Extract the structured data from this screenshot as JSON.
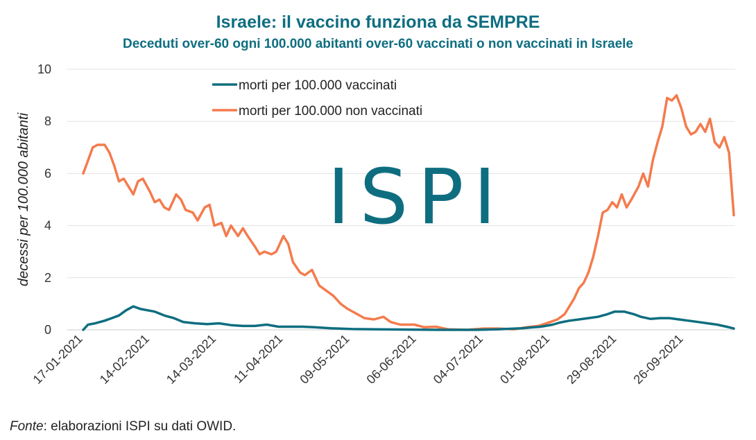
{
  "chart_data": {
    "type": "line",
    "title": "Israele: il vaccino funziona da SEMPRE",
    "subtitle": "Deceduti over-60 ogni 100.000 abitanti over-60 vaccinati o non vaccinati in Israele",
    "ylabel": "decessi per 100.000 abitanti",
    "xlabel": "",
    "ylim": [
      0,
      10
    ],
    "yticks": [
      "0",
      "2",
      "4",
      "6",
      "8",
      "10"
    ],
    "xticks": [
      "17-01-2021",
      "14-02-2021",
      "14-03-2021",
      "11-04-2021",
      "09-05-2021",
      "06-06-2021",
      "04-07-2021",
      "01-08-2021",
      "29-08-2021",
      "26-09-2021"
    ],
    "grid": "horizontal",
    "legend": "top-center",
    "x_start": "2021-01-17",
    "x_end": "2021-10-17",
    "series": [
      {
        "name": "morti per 100.000 vaccinati",
        "color": "#0e6e80",
        "points": [
          [
            "2021-01-17",
            0.0
          ],
          [
            "2021-01-19",
            0.2
          ],
          [
            "2021-01-22",
            0.25
          ],
          [
            "2021-01-26",
            0.35
          ],
          [
            "2021-01-29",
            0.45
          ],
          [
            "2021-02-01",
            0.55
          ],
          [
            "2021-02-04",
            0.75
          ],
          [
            "2021-02-07",
            0.9
          ],
          [
            "2021-02-10",
            0.8
          ],
          [
            "2021-02-13",
            0.75
          ],
          [
            "2021-02-16",
            0.7
          ],
          [
            "2021-02-20",
            0.55
          ],
          [
            "2021-02-24",
            0.45
          ],
          [
            "2021-02-28",
            0.3
          ],
          [
            "2021-03-05",
            0.25
          ],
          [
            "2021-03-10",
            0.22
          ],
          [
            "2021-03-15",
            0.25
          ],
          [
            "2021-03-20",
            0.18
          ],
          [
            "2021-03-25",
            0.15
          ],
          [
            "2021-03-30",
            0.15
          ],
          [
            "2021-04-04",
            0.2
          ],
          [
            "2021-04-09",
            0.12
          ],
          [
            "2021-04-14",
            0.12
          ],
          [
            "2021-04-19",
            0.12
          ],
          [
            "2021-04-24",
            0.1
          ],
          [
            "2021-05-01",
            0.06
          ],
          [
            "2021-05-10",
            0.03
          ],
          [
            "2021-05-20",
            0.02
          ],
          [
            "2021-06-01",
            0.01
          ],
          [
            "2021-06-15",
            0.0
          ],
          [
            "2021-07-01",
            0.0
          ],
          [
            "2021-07-10",
            0.02
          ],
          [
            "2021-07-20",
            0.06
          ],
          [
            "2021-07-28",
            0.12
          ],
          [
            "2021-08-02",
            0.2
          ],
          [
            "2021-08-05",
            0.28
          ],
          [
            "2021-08-09",
            0.35
          ],
          [
            "2021-08-13",
            0.4
          ],
          [
            "2021-08-17",
            0.45
          ],
          [
            "2021-08-21",
            0.5
          ],
          [
            "2021-08-25",
            0.6
          ],
          [
            "2021-08-28",
            0.7
          ],
          [
            "2021-09-01",
            0.7
          ],
          [
            "2021-09-05",
            0.6
          ],
          [
            "2021-09-08",
            0.5
          ],
          [
            "2021-09-12",
            0.42
          ],
          [
            "2021-09-16",
            0.45
          ],
          [
            "2021-09-20",
            0.45
          ],
          [
            "2021-09-24",
            0.4
          ],
          [
            "2021-09-28",
            0.35
          ],
          [
            "2021-10-02",
            0.3
          ],
          [
            "2021-10-06",
            0.25
          ],
          [
            "2021-10-10",
            0.2
          ],
          [
            "2021-10-14",
            0.12
          ],
          [
            "2021-10-17",
            0.05
          ]
        ]
      },
      {
        "name": "morti per 100.000 non vaccinati",
        "color": "#f47b4d",
        "points": [
          [
            "2021-01-17",
            6.0
          ],
          [
            "2021-01-19",
            6.5
          ],
          [
            "2021-01-21",
            7.0
          ],
          [
            "2021-01-23",
            7.1
          ],
          [
            "2021-01-26",
            7.1
          ],
          [
            "2021-01-28",
            6.8
          ],
          [
            "2021-01-30",
            6.3
          ],
          [
            "2021-02-01",
            5.7
          ],
          [
            "2021-02-03",
            5.8
          ],
          [
            "2021-02-05",
            5.5
          ],
          [
            "2021-02-07",
            5.2
          ],
          [
            "2021-02-09",
            5.7
          ],
          [
            "2021-02-11",
            5.8
          ],
          [
            "2021-02-14",
            5.3
          ],
          [
            "2021-02-16",
            4.9
          ],
          [
            "2021-02-18",
            5.0
          ],
          [
            "2021-02-20",
            4.7
          ],
          [
            "2021-02-22",
            4.6
          ],
          [
            "2021-02-25",
            5.2
          ],
          [
            "2021-02-27",
            5.0
          ],
          [
            "2021-03-01",
            4.6
          ],
          [
            "2021-03-04",
            4.5
          ],
          [
            "2021-03-06",
            4.2
          ],
          [
            "2021-03-09",
            4.7
          ],
          [
            "2021-03-11",
            4.8
          ],
          [
            "2021-03-13",
            4.0
          ],
          [
            "2021-03-16",
            4.1
          ],
          [
            "2021-03-18",
            3.6
          ],
          [
            "2021-03-20",
            4.0
          ],
          [
            "2021-03-23",
            3.6
          ],
          [
            "2021-03-25",
            3.9
          ],
          [
            "2021-03-27",
            3.6
          ],
          [
            "2021-03-30",
            3.2
          ],
          [
            "2021-04-01",
            2.9
          ],
          [
            "2021-04-03",
            3.0
          ],
          [
            "2021-04-06",
            2.9
          ],
          [
            "2021-04-08",
            3.0
          ],
          [
            "2021-04-11",
            3.6
          ],
          [
            "2021-04-13",
            3.3
          ],
          [
            "2021-04-15",
            2.6
          ],
          [
            "2021-04-18",
            2.2
          ],
          [
            "2021-04-20",
            2.1
          ],
          [
            "2021-04-23",
            2.3
          ],
          [
            "2021-04-26",
            1.7
          ],
          [
            "2021-04-29",
            1.5
          ],
          [
            "2021-05-02",
            1.3
          ],
          [
            "2021-05-05",
            1.0
          ],
          [
            "2021-05-08",
            0.8
          ],
          [
            "2021-05-12",
            0.6
          ],
          [
            "2021-05-15",
            0.45
          ],
          [
            "2021-05-19",
            0.4
          ],
          [
            "2021-05-23",
            0.5
          ],
          [
            "2021-05-26",
            0.3
          ],
          [
            "2021-05-30",
            0.2
          ],
          [
            "2021-06-05",
            0.2
          ],
          [
            "2021-06-09",
            0.1
          ],
          [
            "2021-06-14",
            0.12
          ],
          [
            "2021-06-19",
            0.02
          ],
          [
            "2021-06-27",
            0.0
          ],
          [
            "2021-07-04",
            0.05
          ],
          [
            "2021-07-10",
            0.05
          ],
          [
            "2021-07-17",
            0.02
          ],
          [
            "2021-07-22",
            0.1
          ],
          [
            "2021-07-27",
            0.15
          ],
          [
            "2021-08-01",
            0.3
          ],
          [
            "2021-08-04",
            0.4
          ],
          [
            "2021-08-07",
            0.6
          ],
          [
            "2021-08-09",
            0.9
          ],
          [
            "2021-08-11",
            1.2
          ],
          [
            "2021-08-13",
            1.6
          ],
          [
            "2021-08-15",
            1.8
          ],
          [
            "2021-08-17",
            2.2
          ],
          [
            "2021-08-19",
            2.8
          ],
          [
            "2021-08-21",
            3.6
          ],
          [
            "2021-08-23",
            4.5
          ],
          [
            "2021-08-25",
            4.6
          ],
          [
            "2021-08-27",
            4.9
          ],
          [
            "2021-08-29",
            4.7
          ],
          [
            "2021-08-31",
            5.2
          ],
          [
            "2021-09-02",
            4.7
          ],
          [
            "2021-09-04",
            5.0
          ],
          [
            "2021-09-07",
            5.5
          ],
          [
            "2021-09-09",
            6.0
          ],
          [
            "2021-09-11",
            5.5
          ],
          [
            "2021-09-13",
            6.5
          ],
          [
            "2021-09-15",
            7.2
          ],
          [
            "2021-09-17",
            7.8
          ],
          [
            "2021-09-19",
            8.9
          ],
          [
            "2021-09-21",
            8.8
          ],
          [
            "2021-09-23",
            9.0
          ],
          [
            "2021-09-25",
            8.5
          ],
          [
            "2021-09-27",
            7.8
          ],
          [
            "2021-09-29",
            7.5
          ],
          [
            "2021-10-01",
            7.6
          ],
          [
            "2021-10-03",
            7.9
          ],
          [
            "2021-10-05",
            7.6
          ],
          [
            "2021-10-07",
            8.1
          ],
          [
            "2021-10-09",
            7.2
          ],
          [
            "2021-10-11",
            7.0
          ],
          [
            "2021-10-13",
            7.4
          ],
          [
            "2021-10-15",
            6.8
          ],
          [
            "2021-10-17",
            4.4
          ]
        ]
      }
    ]
  },
  "watermark": "ISPI",
  "footer": {
    "source_label": "Fonte",
    "source_text": ": elaborazioni ISPI su dati OWID."
  }
}
